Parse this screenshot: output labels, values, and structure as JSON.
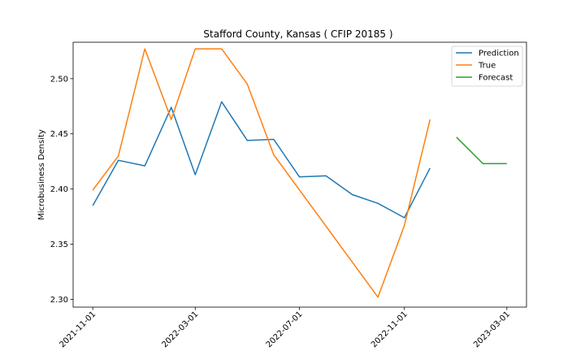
{
  "chart_data": {
    "type": "line",
    "title": "Stafford County, Kansas ( CFIP 20185 )",
    "xlabel": "",
    "ylabel": "Microbusiness Density",
    "ylim": [
      2.293,
      2.533
    ],
    "yticks": [
      2.3,
      2.35,
      2.4,
      2.45,
      2.5
    ],
    "ytick_labels": [
      "2.30",
      "2.35",
      "2.40",
      "2.45",
      "2.50"
    ],
    "xlim": [
      "2021-10-09",
      "2023-03-24"
    ],
    "xticks": [
      "2021-11-01",
      "2022-03-01",
      "2022-07-01",
      "2022-11-01",
      "2023-03-01"
    ],
    "grid": false,
    "legend_position": "top-right",
    "series": [
      {
        "name": "Prediction",
        "color": "#1f77b4",
        "x": [
          "2021-11-01",
          "2021-12-01",
          "2022-01-01",
          "2022-02-01",
          "2022-03-01",
          "2022-04-01",
          "2022-05-01",
          "2022-06-01",
          "2022-07-01",
          "2022-08-01",
          "2022-09-01",
          "2022-10-01",
          "2022-11-01",
          "2022-12-01"
        ],
        "values": [
          2.385,
          2.426,
          2.421,
          2.474,
          2.413,
          2.479,
          2.444,
          2.445,
          2.411,
          2.412,
          2.395,
          2.387,
          2.374,
          2.419
        ]
      },
      {
        "name": "True",
        "color": "#ff7f0e",
        "x": [
          "2021-11-01",
          "2021-12-01",
          "2022-01-01",
          "2022-02-01",
          "2022-03-01",
          "2022-04-01",
          "2022-05-01",
          "2022-06-01",
          "2022-10-01",
          "2022-11-01",
          "2022-12-01"
        ],
        "values": [
          2.399,
          2.43,
          2.527,
          2.463,
          2.527,
          2.527,
          2.495,
          2.431,
          2.302,
          2.367,
          2.463
        ]
      },
      {
        "name": "Forecast",
        "color": "#2ca02c",
        "x": [
          "2023-01-01",
          "2023-02-01",
          "2023-03-01"
        ],
        "values": [
          2.447,
          2.423,
          2.423
        ]
      }
    ]
  }
}
